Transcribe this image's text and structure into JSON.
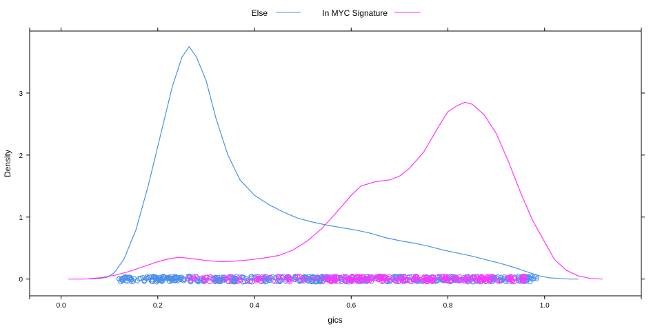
{
  "chart_data": {
    "type": "line",
    "title": "",
    "xlabel": "gics",
    "ylabel": "Density",
    "xlim": [
      -0.065,
      1.2
    ],
    "ylim": [
      -0.27,
      4.0
    ],
    "x_ticks": [
      0.0,
      0.2,
      0.4,
      0.6,
      0.8,
      1.0
    ],
    "x_tick_labels": [
      "0.0",
      "0.2",
      "0.4",
      "0.6",
      "0.8",
      "1.0"
    ],
    "y_ticks": [
      0,
      1,
      2,
      3
    ],
    "y_tick_labels": [
      "0",
      "1",
      "2",
      "3"
    ],
    "grid": false,
    "legend_position": "top",
    "series": [
      {
        "name": "Else",
        "color": "#4a90e8",
        "x": [
          0.06,
          0.08,
          0.095,
          0.11,
          0.13,
          0.155,
          0.18,
          0.205,
          0.23,
          0.25,
          0.265,
          0.28,
          0.3,
          0.32,
          0.345,
          0.37,
          0.4,
          0.43,
          0.46,
          0.49,
          0.52,
          0.55,
          0.58,
          0.61,
          0.64,
          0.67,
          0.7,
          0.73,
          0.76,
          0.79,
          0.82,
          0.85,
          0.88,
          0.91,
          0.94,
          0.97,
          0.99,
          1.01,
          1.03,
          1.05,
          1.07
        ],
        "values": [
          0.0,
          0.01,
          0.03,
          0.1,
          0.32,
          0.8,
          1.5,
          2.3,
          3.1,
          3.58,
          3.75,
          3.58,
          3.2,
          2.6,
          2.0,
          1.6,
          1.35,
          1.2,
          1.08,
          0.98,
          0.92,
          0.87,
          0.83,
          0.79,
          0.74,
          0.67,
          0.62,
          0.58,
          0.53,
          0.47,
          0.42,
          0.37,
          0.31,
          0.25,
          0.18,
          0.1,
          0.05,
          0.02,
          0.01,
          0.0,
          0.0
        ]
      },
      {
        "name": "In MYC Signature",
        "color": "#ff33ff",
        "x": [
          0.015,
          0.05,
          0.08,
          0.11,
          0.14,
          0.17,
          0.2,
          0.225,
          0.245,
          0.27,
          0.3,
          0.33,
          0.36,
          0.39,
          0.42,
          0.45,
          0.48,
          0.51,
          0.54,
          0.57,
          0.6,
          0.62,
          0.65,
          0.68,
          0.7,
          0.72,
          0.75,
          0.78,
          0.8,
          0.82,
          0.835,
          0.85,
          0.875,
          0.9,
          0.925,
          0.95,
          0.975,
          1.0,
          1.02,
          1.045,
          1.07,
          1.095,
          1.12
        ],
        "values": [
          0.0,
          0.0,
          0.02,
          0.06,
          0.12,
          0.2,
          0.28,
          0.33,
          0.35,
          0.33,
          0.3,
          0.28,
          0.29,
          0.31,
          0.34,
          0.38,
          0.47,
          0.62,
          0.82,
          1.08,
          1.35,
          1.5,
          1.57,
          1.6,
          1.66,
          1.78,
          2.05,
          2.45,
          2.7,
          2.8,
          2.85,
          2.82,
          2.65,
          2.35,
          1.9,
          1.4,
          0.95,
          0.6,
          0.32,
          0.14,
          0.05,
          0.01,
          0.0
        ]
      }
    ],
    "rug": {
      "y": 0,
      "points": [
        {
          "series": "Else",
          "x_min": 0.12,
          "x_max": 0.99
        },
        {
          "series": "In MYC Signature",
          "x_min": 0.26,
          "x_max": 0.96
        }
      ]
    }
  },
  "legend": {
    "items": [
      {
        "label": "Else",
        "color": "#4a90e8"
      },
      {
        "label": "In MYC Signature",
        "color": "#ff33ff"
      }
    ]
  }
}
